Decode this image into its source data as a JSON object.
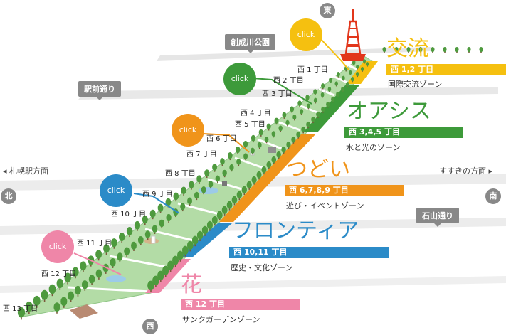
{
  "colors": {
    "kouryu": "#f5c010",
    "oasis": "#3d9a3a",
    "tsudoi": "#f0941a",
    "frontier": "#2b8bc8",
    "hana": "#ef86a8",
    "grass": "#a7d49a",
    "road": "#e6e6e6",
    "tag": "#888888"
  },
  "landmarks": {
    "tag_sosei": "創成川公園",
    "tag_ekimae": "駅前通り",
    "tag_ishiyama": "石山通り"
  },
  "directions": {
    "east": "東",
    "north": "北",
    "south": "南",
    "west": "西",
    "left_label": "札幌駅方面",
    "right_label": "すすきの方面"
  },
  "blocks": [
    "西 1 丁目",
    "西 2 丁目",
    "西 3 丁目",
    "西 4 丁目",
    "西 5 丁目",
    "西 6 丁目",
    "西 7 丁目",
    "西 8 丁目",
    "西 9 丁目",
    "西 10 丁目",
    "西 11 丁目",
    "西 12 丁目",
    "西 13 丁目"
  ],
  "click_label": "click",
  "zones": [
    {
      "title": "交流",
      "blocks": "西 1,2 丁目",
      "subtitle": "国際交流ゾーン",
      "icon": "yellow-zone"
    },
    {
      "title": "オアシス",
      "blocks": "西 3,4,5 丁目",
      "subtitle": "水と光のゾーン",
      "icon": "green-zone"
    },
    {
      "title": "つどい",
      "blocks": "西 6,7,8,9 丁目",
      "subtitle": "遊び・イベントゾーン",
      "icon": "orange-zone"
    },
    {
      "title": "フロンティア",
      "blocks": "西 10,11 丁目",
      "subtitle": "歴史・文化ゾーン",
      "icon": "blue-zone"
    },
    {
      "title": "花",
      "blocks": "西 12 丁目",
      "subtitle": "サンクガーデンゾーン",
      "icon": "pink-zone"
    }
  ]
}
